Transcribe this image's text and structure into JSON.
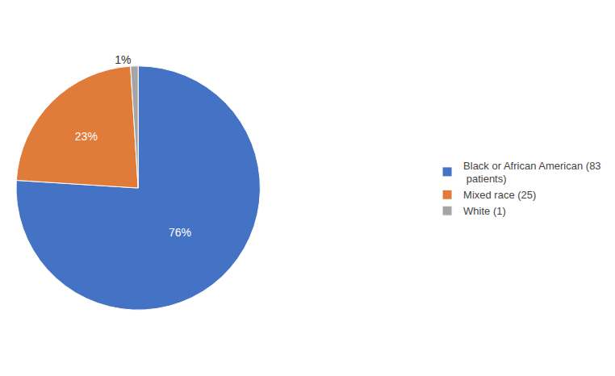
{
  "chart_data": {
    "type": "pie",
    "categories": [
      "Black or African American (83\n patients)",
      "Mixed race (25)",
      "White (1)"
    ],
    "values": [
      76,
      23,
      1
    ],
    "value_labels": [
      "76%",
      "23%",
      "1%"
    ],
    "colors": [
      "#4472C4",
      "#E07B39",
      "#A5A5A5"
    ],
    "legend": "right",
    "data_labels": true
  }
}
